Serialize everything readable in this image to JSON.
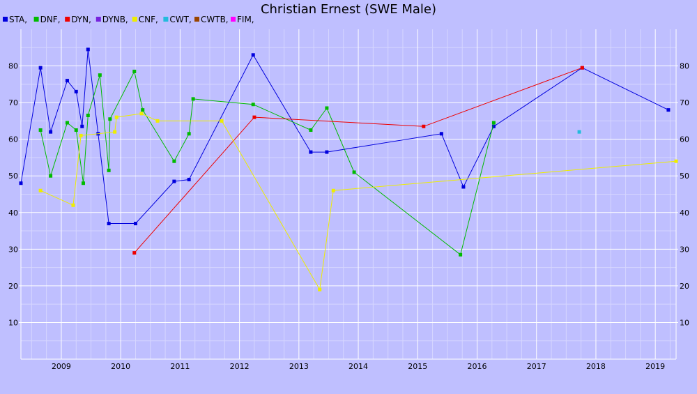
{
  "chart_data": {
    "type": "line",
    "title": "Christian Ernest (SWE Male)",
    "xlabel": "",
    "ylabel": "",
    "xlim": [
      2008.32,
      2019.35
    ],
    "ylim": [
      0,
      90
    ],
    "x_ticks": [
      "2009",
      "2010",
      "2011",
      "2012",
      "2013",
      "2014",
      "2015",
      "2016",
      "2017",
      "2018",
      "2019"
    ],
    "y_ticks": [
      "10",
      "20",
      "30",
      "40",
      "50",
      "60",
      "70",
      "80"
    ],
    "grid": true,
    "legend_position": "top-left",
    "series": [
      {
        "name": "STA,",
        "color": "#0000dd",
        "points": [
          [
            2008.32,
            48
          ],
          [
            2008.65,
            79.5
          ],
          [
            2008.82,
            62
          ],
          [
            2009.1,
            76
          ],
          [
            2009.25,
            73
          ],
          [
            2009.35,
            63.5
          ],
          [
            2009.45,
            84.5
          ],
          [
            2009.62,
            61.5
          ],
          [
            2009.8,
            37
          ],
          [
            2010.25,
            37
          ],
          [
            2010.9,
            48.5
          ],
          [
            2011.15,
            49
          ],
          [
            2012.23,
            83
          ],
          [
            2013.2,
            56.5
          ],
          [
            2013.47,
            56.5
          ],
          [
            2015.4,
            61.5
          ],
          [
            2015.77,
            47
          ],
          [
            2016.28,
            63.5
          ],
          [
            2017.77,
            79.5
          ],
          [
            2019.22,
            68
          ]
        ]
      },
      {
        "name": "DNF,",
        "color": "#00bb00",
        "points": [
          [
            2008.65,
            62.5
          ],
          [
            2008.82,
            50
          ],
          [
            2009.1,
            64.5
          ],
          [
            2009.25,
            62.5
          ],
          [
            2009.37,
            48
          ],
          [
            2009.45,
            66.5
          ],
          [
            2009.65,
            77.5
          ],
          [
            2009.8,
            51.5
          ],
          [
            2009.82,
            65.5
          ],
          [
            2010.23,
            78.5
          ],
          [
            2010.37,
            68
          ],
          [
            2010.9,
            54
          ],
          [
            2011.15,
            61.5
          ],
          [
            2011.22,
            71
          ],
          [
            2012.23,
            69.5
          ],
          [
            2013.2,
            62.5
          ],
          [
            2013.47,
            68.5
          ],
          [
            2013.93,
            51
          ],
          [
            2015.72,
            28.5
          ],
          [
            2016.28,
            64.5
          ]
        ]
      },
      {
        "name": "DYN,",
        "color": "#ee0000",
        "points": [
          [
            2010.23,
            29
          ],
          [
            2012.25,
            66
          ],
          [
            2015.1,
            63.5
          ],
          [
            2017.77,
            79.5
          ]
        ]
      },
      {
        "name": "DYNB,",
        "color": "#7722dd",
        "points": []
      },
      {
        "name": "CNF,",
        "color": "#eeee00",
        "points": [
          [
            2008.65,
            46
          ],
          [
            2009.2,
            42
          ],
          [
            2009.33,
            61
          ],
          [
            2009.9,
            62
          ],
          [
            2009.93,
            66
          ],
          [
            2010.35,
            67
          ],
          [
            2010.62,
            65
          ],
          [
            2011.7,
            65
          ],
          [
            2013.35,
            19
          ],
          [
            2013.58,
            46
          ],
          [
            2019.35,
            54
          ]
        ]
      },
      {
        "name": "CWT,",
        "color": "#22bbdd",
        "points": [
          [
            2017.72,
            62
          ]
        ]
      },
      {
        "name": "CWTB,",
        "color": "#994400",
        "points": []
      },
      {
        "name": "FIM,",
        "color": "#ff00ff",
        "points": []
      }
    ]
  }
}
